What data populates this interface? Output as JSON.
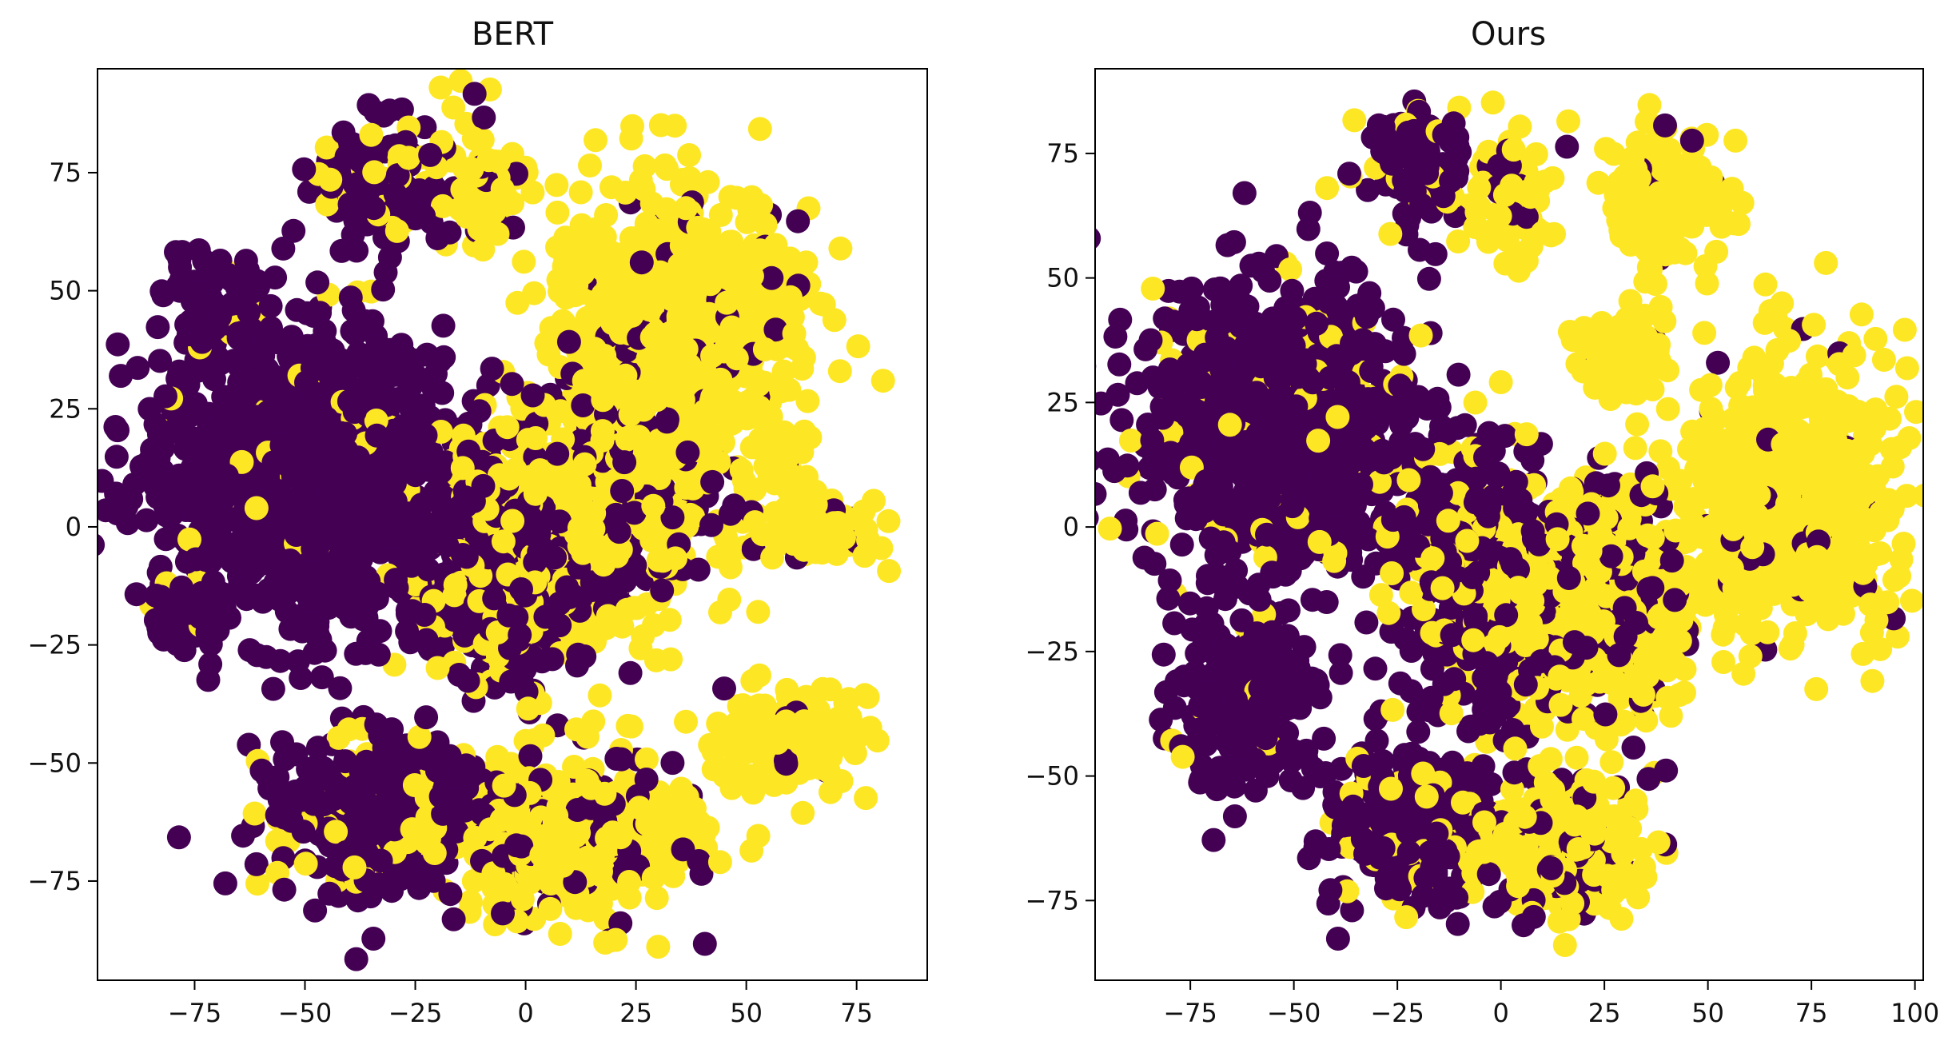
{
  "figure": {
    "colors": {
      "class_0": "#440154",
      "class_1": "#fde725",
      "axis": "#000000",
      "background": "#ffffff"
    }
  },
  "chart_data": [
    {
      "type": "scatter",
      "title": "BERT",
      "xlabel": "",
      "ylabel": "",
      "xlim": [
        -97,
        91
      ],
      "ylim": [
        -96,
        97
      ],
      "xticks": [
        -75,
        -50,
        -25,
        0,
        25,
        50,
        75
      ],
      "yticks": [
        -75,
        -50,
        -25,
        0,
        25,
        50,
        75
      ],
      "grid": false,
      "legend": "none",
      "clusters": [
        {
          "label": 0,
          "cx": -70,
          "cy": 47,
          "rx": 11,
          "ry": 9,
          "n": 70,
          "purity": 0.97
        },
        {
          "label": 0,
          "cx": -33,
          "cy": 73,
          "rx": 14,
          "ry": 13,
          "n": 110,
          "purity": 0.75
        },
        {
          "label": 1,
          "cx": -10,
          "cy": 72,
          "rx": 9,
          "ry": 12,
          "n": 70,
          "purity": 0.8
        },
        {
          "label": 0,
          "cx": -50,
          "cy": 10,
          "rx": 32,
          "ry": 30,
          "n": 1100,
          "purity": 0.95
        },
        {
          "label": 0,
          "cx": -78,
          "cy": -20,
          "rx": 7,
          "ry": 5,
          "n": 40,
          "purity": 0.95
        },
        {
          "label": 0,
          "cx": -5,
          "cy": -10,
          "rx": 18,
          "ry": 25,
          "n": 420,
          "purity": 0.65
        },
        {
          "label": 1,
          "cx": 20,
          "cy": 5,
          "rx": 25,
          "ry": 25,
          "n": 560,
          "purity": 0.7
        },
        {
          "label": 1,
          "cx": 35,
          "cy": 45,
          "rx": 25,
          "ry": 25,
          "n": 700,
          "purity": 0.93
        },
        {
          "label": 1,
          "cx": 70,
          "cy": 0,
          "rx": 12,
          "ry": 7,
          "n": 70,
          "purity": 0.95
        },
        {
          "label": 1,
          "cx": 58,
          "cy": 13,
          "rx": 6,
          "ry": 12,
          "n": 40,
          "purity": 0.95
        },
        {
          "label": 0,
          "cx": -35,
          "cy": -60,
          "rx": 22,
          "ry": 15,
          "n": 380,
          "purity": 0.82
        },
        {
          "label": 1,
          "cx": 10,
          "cy": -65,
          "rx": 25,
          "ry": 15,
          "n": 450,
          "purity": 0.75
        },
        {
          "label": 1,
          "cx": 60,
          "cy": -45,
          "rx": 15,
          "ry": 10,
          "n": 200,
          "purity": 0.93
        }
      ]
    },
    {
      "type": "scatter",
      "title": "Ours",
      "xlabel": "",
      "ylabel": "",
      "xlim": [
        -98,
        102
      ],
      "ylim": [
        -91,
        92
      ],
      "xticks": [
        -75,
        -50,
        -25,
        0,
        25,
        50,
        75,
        100
      ],
      "yticks": [
        -75,
        -50,
        -25,
        0,
        25,
        50,
        75
      ],
      "grid": false,
      "legend": "none",
      "clusters": [
        {
          "label": 0,
          "cx": -20,
          "cy": 72,
          "rx": 12,
          "ry": 10,
          "n": 100,
          "purity": 0.85
        },
        {
          "label": 1,
          "cx": 2,
          "cy": 68,
          "rx": 10,
          "ry": 14,
          "n": 80,
          "purity": 0.85
        },
        {
          "label": 1,
          "cx": 40,
          "cy": 66,
          "rx": 14,
          "ry": 13,
          "n": 160,
          "purity": 0.95
        },
        {
          "label": 0,
          "cx": -55,
          "cy": 20,
          "rx": 30,
          "ry": 28,
          "n": 1000,
          "purity": 0.93
        },
        {
          "label": 0,
          "cx": -60,
          "cy": -35,
          "rx": 15,
          "ry": 15,
          "n": 250,
          "purity": 0.9
        },
        {
          "label": 0,
          "cx": -20,
          "cy": -60,
          "rx": 20,
          "ry": 15,
          "n": 300,
          "purity": 0.85
        },
        {
          "label": 0,
          "cx": -5,
          "cy": -10,
          "rx": 20,
          "ry": 25,
          "n": 450,
          "purity": 0.6
        },
        {
          "label": 1,
          "cx": 25,
          "cy": -15,
          "rx": 20,
          "ry": 25,
          "n": 450,
          "purity": 0.7
        },
        {
          "label": 1,
          "cx": 70,
          "cy": 5,
          "rx": 25,
          "ry": 25,
          "n": 700,
          "purity": 0.95
        },
        {
          "label": 1,
          "cx": 30,
          "cy": 35,
          "rx": 10,
          "ry": 8,
          "n": 80,
          "purity": 0.95
        },
        {
          "label": 1,
          "cx": 15,
          "cy": -65,
          "rx": 18,
          "ry": 12,
          "n": 300,
          "purity": 0.8
        }
      ]
    }
  ]
}
